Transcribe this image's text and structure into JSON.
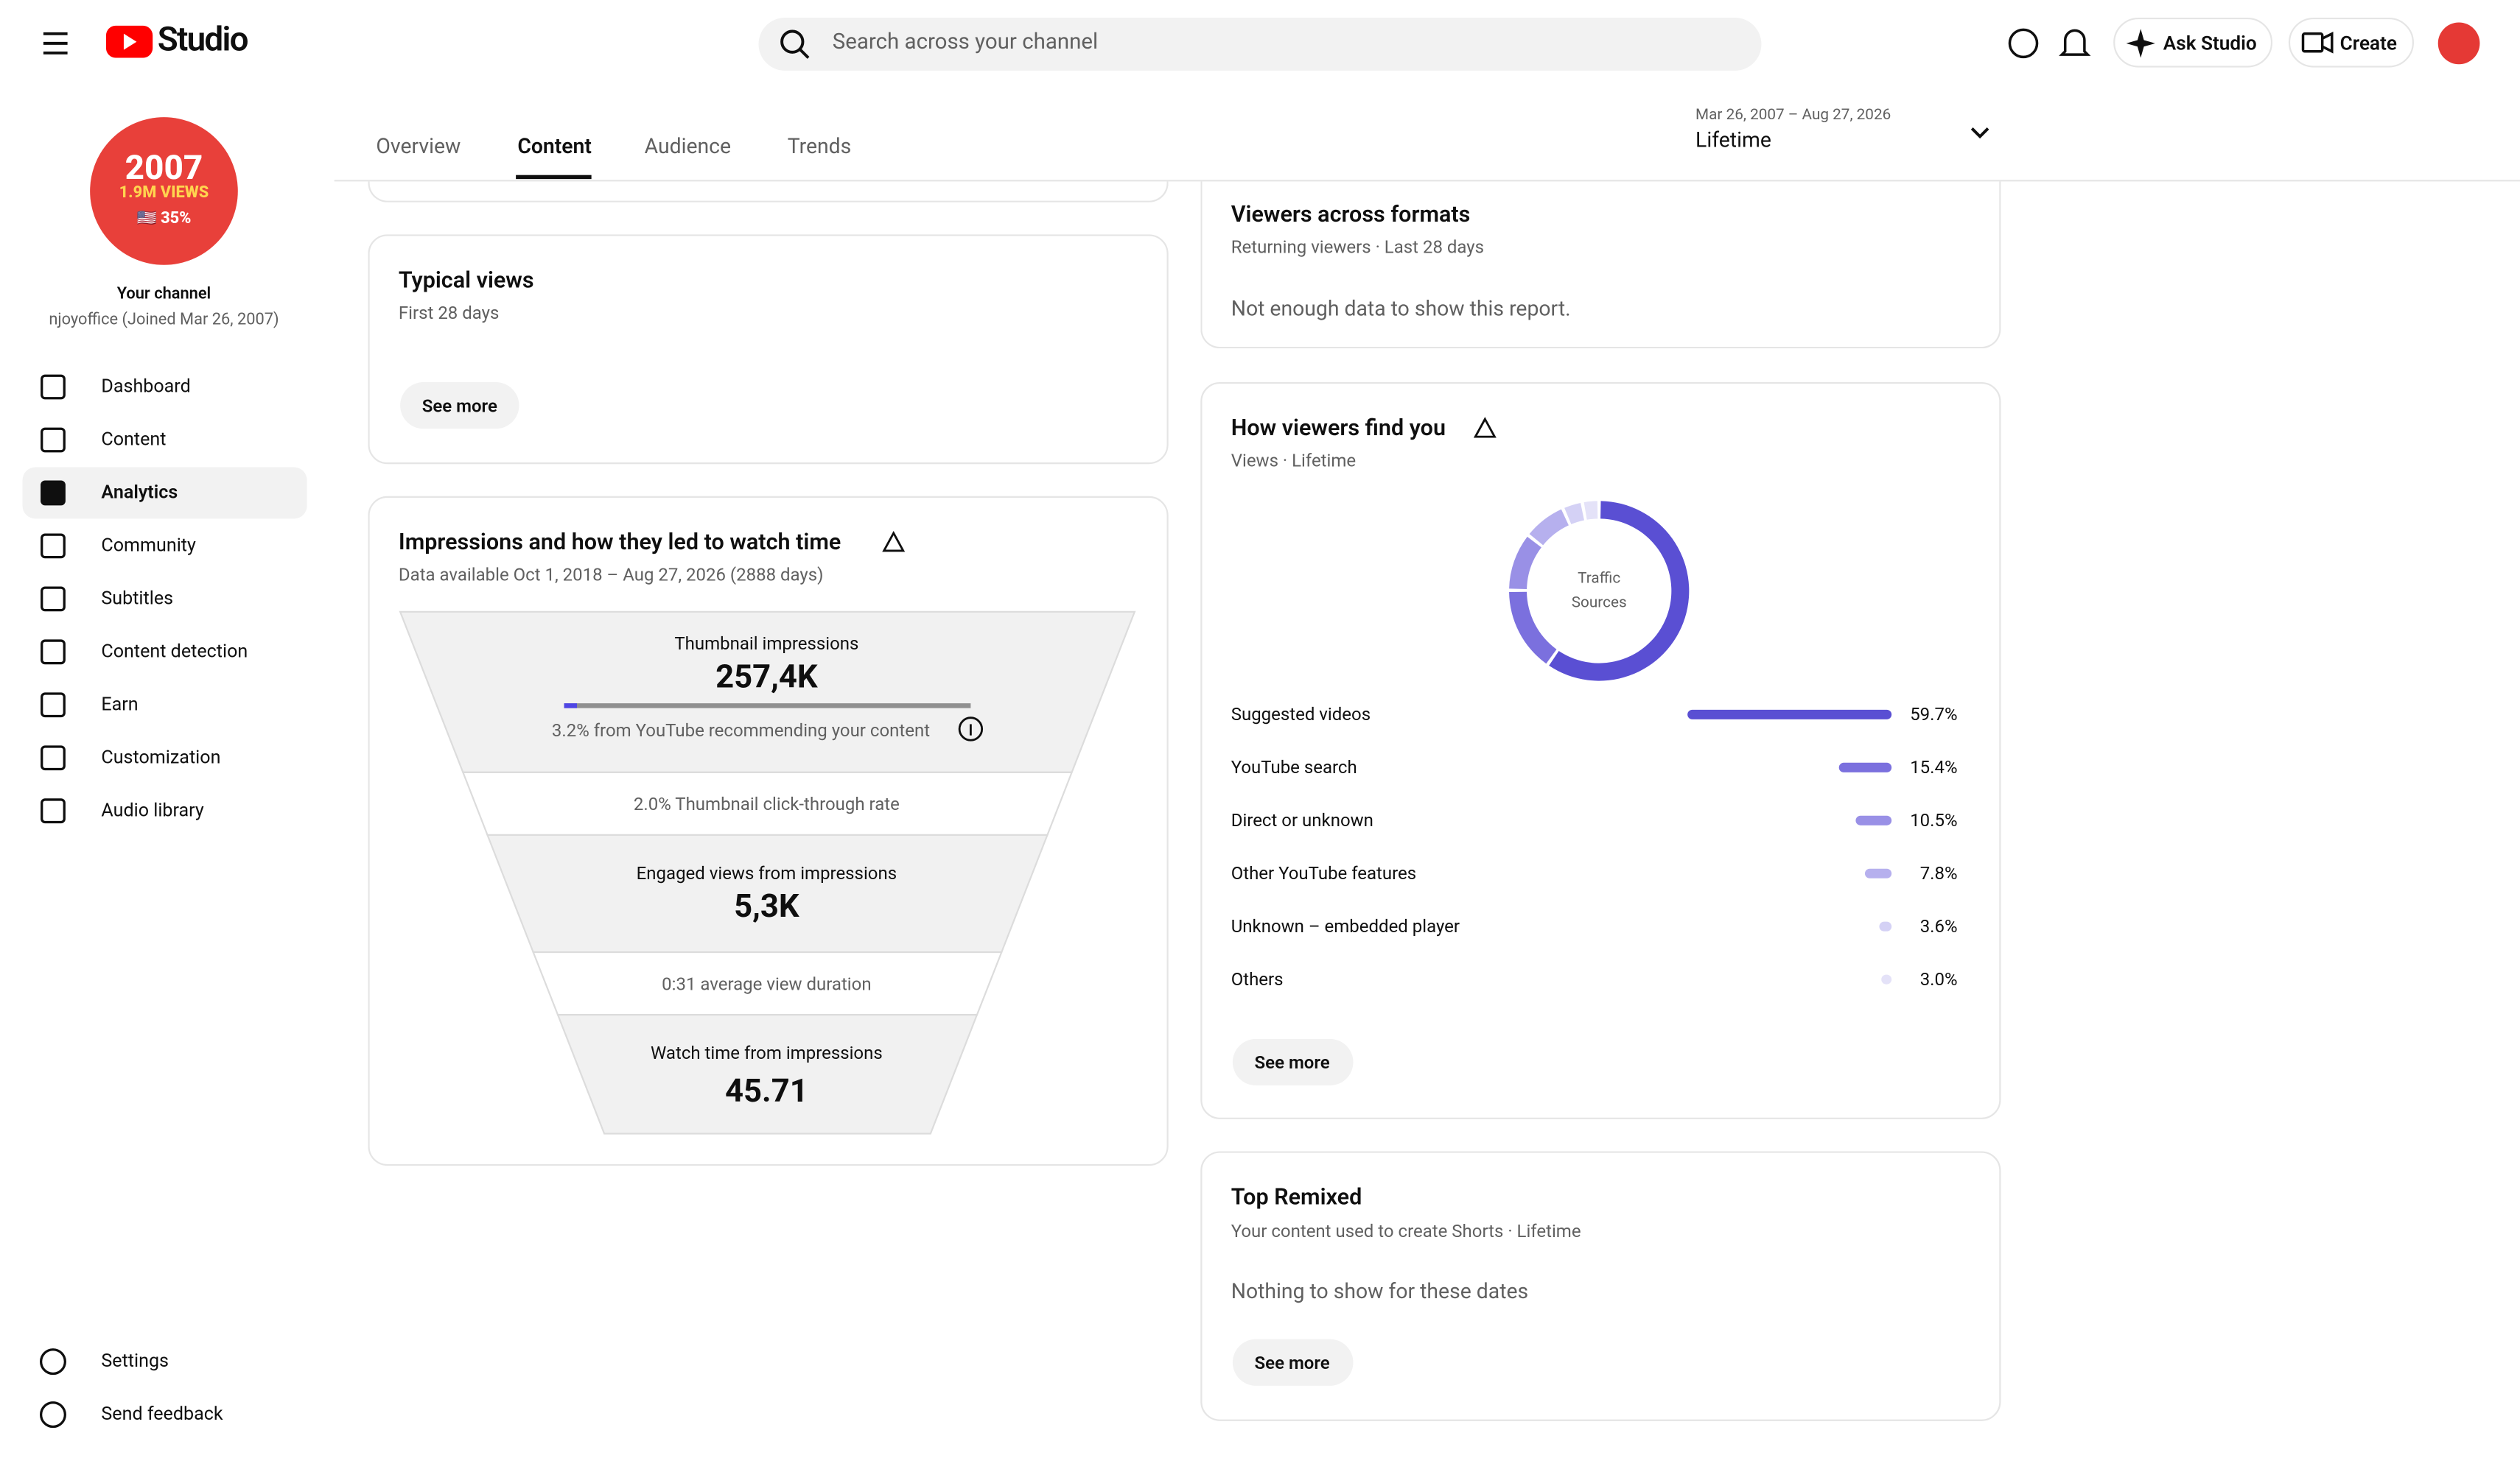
{
  "top_bar": {
    "logo": "Studio",
    "search_placeholder": "Search across your channel",
    "ask_studio": "Ask Studio",
    "create": "Create"
  },
  "channel": {
    "badge_year": "2007",
    "badge_views": "1.9M VIEWS",
    "badge_share": "🇺🇸 35%",
    "title": "Your channel",
    "handle": "njoyoffice (Joined Mar 26, 2007)"
  },
  "nav": {
    "items": [
      "Dashboard",
      "Content",
      "Analytics",
      "Community",
      "Subtitles",
      "Content detection",
      "Earn",
      "Customization",
      "Audio library"
    ],
    "selected": "Analytics",
    "footer": [
      "Settings",
      "Send feedback"
    ]
  },
  "tabs": {
    "items": [
      "Overview",
      "Content",
      "Audience",
      "Trends"
    ],
    "selected": "Content"
  },
  "date_range": {
    "range": "Mar 26, 2007 – Aug 27, 2026",
    "period": "Lifetime"
  },
  "typical_views": {
    "title": "Typical views",
    "subtitle": "First 28 days",
    "button": "See more"
  },
  "impressions": {
    "title": "Impressions and how they led to watch time",
    "subtitle": "Data available Oct 1, 2018 – Aug 27, 2026 (2888 days)",
    "stages": [
      {
        "label": "Thumbnail impressions",
        "value": "257,4K",
        "note": "3.2% from YouTube recommending your content"
      },
      {
        "label": "2.0% Thumbnail click-through rate"
      },
      {
        "label": "Engaged views from impressions",
        "value": "5,3K"
      },
      {
        "label": "0:31 average view duration"
      },
      {
        "label": "Watch time from impressions",
        "value": "45.71"
      }
    ]
  },
  "viewers_across_formats": {
    "title": "Viewers across formats",
    "subtitle": "Returning viewers · Last 28 days",
    "message": "Not enough data to show this report."
  },
  "traffic": {
    "title": "How viewers find you",
    "subtitle": "Views · Lifetime",
    "center_label": "Traffic Sources",
    "names": [
      "Suggested videos",
      "YouTube search",
      "Direct or unknown",
      "Other YouTube features",
      "Unknown – embedded player",
      "Others"
    ],
    "values": [
      59.7,
      15.4,
      10.5,
      7.8,
      3.6,
      3.0
    ],
    "value_labels": [
      "59.7%",
      "15.4%",
      "10.5%",
      "7.8%",
      "3.6%",
      "3.0%"
    ],
    "colors": [
      "#5a4fd3",
      "#7b70de",
      "#9990e6",
      "#b6b0ee",
      "#d4d1f5",
      "#e4e2f8"
    ],
    "button": "See more"
  },
  "top_remixed": {
    "title": "Top Remixed",
    "subtitle": "Your content used to create Shorts · Lifetime",
    "message": "Nothing to show for these dates",
    "button": "See more"
  }
}
